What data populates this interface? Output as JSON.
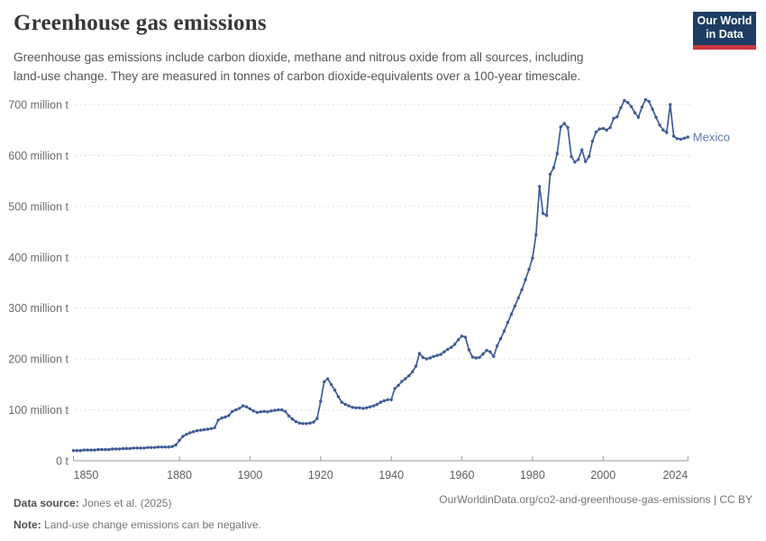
{
  "header": {
    "title": "Greenhouse gas emissions",
    "subtitle_line1": "Greenhouse gas emissions include carbon dioxide, methane and nitrous oxide from all sources, including",
    "subtitle_line2": "land-use change. They are measured in tonnes of carbon dioxide-equivalents over a 100-year timescale.",
    "logo": {
      "line1": "Our World",
      "line2": "in Data"
    }
  },
  "chart_data": {
    "type": "line",
    "title": "Greenhouse gas emissions",
    "unit": "million t",
    "x": {
      "start_year": 1850,
      "end_year": 2024,
      "step": 1
    },
    "series": [
      {
        "name": "Mexico",
        "values": [
          20,
          20,
          20,
          21,
          21,
          21,
          21,
          22,
          22,
          22,
          22,
          23,
          23,
          23,
          24,
          24,
          24,
          25,
          25,
          25,
          25,
          26,
          26,
          26,
          27,
          27,
          27,
          27,
          28,
          31,
          40,
          48,
          52,
          55,
          57,
          59,
          60,
          61,
          62,
          63,
          65,
          80,
          84,
          86,
          89,
          97,
          100,
          103,
          108,
          106,
          102,
          98,
          95,
          96,
          97,
          96,
          98,
          99,
          100,
          100,
          97,
          88,
          82,
          77,
          74,
          73,
          73,
          74,
          76,
          83,
          117,
          155,
          161,
          150,
          139,
          126,
          115,
          111,
          108,
          105,
          104,
          104,
          103,
          104,
          106,
          108,
          111,
          115,
          118,
          120,
          120,
          142,
          148,
          156,
          161,
          167,
          175,
          186,
          211,
          203,
          200,
          202,
          205,
          207,
          209,
          214,
          219,
          223,
          229,
          238,
          245,
          243,
          218,
          204,
          202,
          203,
          210,
          217,
          214,
          205,
          226,
          240,
          255,
          272,
          288,
          304,
          320,
          336,
          356,
          376,
          398,
          444,
          539,
          486,
          482,
          563,
          576,
          604,
          656,
          663,
          655,
          598,
          587,
          592,
          611,
          588,
          598,
          628,
          646,
          652,
          653,
          650,
          655,
          673,
          676,
          694,
          708,
          704,
          696,
          684,
          675,
          695,
          710,
          706,
          691,
          675,
          660,
          650,
          645,
          700,
          638,
          633,
          632,
          634,
          636
        ]
      }
    ],
    "ylim": [
      0,
      700
    ],
    "yticks": [
      0,
      100,
      200,
      300,
      400,
      500,
      600,
      700
    ],
    "ytick_labels": [
      "0 t",
      "100 million t",
      "200 million t",
      "300 million t",
      "400 million t",
      "500 million t",
      "600 million t",
      "700 million t"
    ],
    "xticks": [
      1850,
      1880,
      1900,
      1920,
      1940,
      1960,
      1980,
      2000,
      2024
    ],
    "grid": "horizontal-dashed",
    "legend": "line-end-label"
  },
  "footer": {
    "data_source_label": "Data source:",
    "data_source_value": "Jones et al. (2025)",
    "note_label": "Note:",
    "note_value": "Land-use change emissions can be negative.",
    "link": "OurWorldinData.org/co2-and-greenhouse-gas-emissions | CC BY"
  },
  "colors": {
    "background": "#ffffff",
    "line": "#3d5c96",
    "series_label": "#5b79a8",
    "title_text": "#373737",
    "subtitle_text": "#565656",
    "axis_text": "#6b6b6b",
    "xaxis_text": "#5f5f5f",
    "gridline": "#dcdcdc",
    "axis_line": "#9a9a9a",
    "footer_text": "#757575",
    "logo_navy": "#1d3d63",
    "logo_red": "#cf3540"
  }
}
